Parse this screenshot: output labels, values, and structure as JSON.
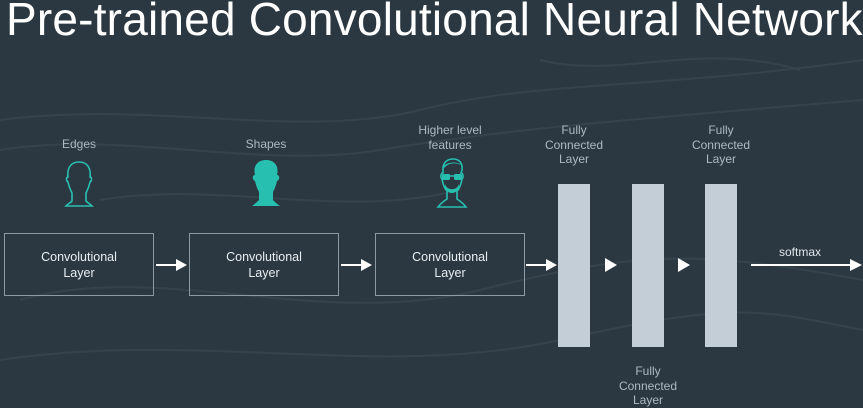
{
  "title": "Pre-trained Convolutional Neural Network",
  "feature_labels": {
    "edges": "Edges",
    "shapes": "Shapes",
    "higher_level": "Higher level\nfeatures"
  },
  "conv_layers": [
    {
      "label": "Convolutional\nLayer"
    },
    {
      "label": "Convolutional\nLayer"
    },
    {
      "label": "Convolutional\nLayer"
    }
  ],
  "fc_labels": {
    "fc1": "Fully\nConnected\nLayer",
    "fc2": "Fully\nConnected\nLayer",
    "fc3": "Fully\nConnected\nLayer"
  },
  "softmax_label": "softmax",
  "colors": {
    "background": "#2b3841",
    "accent": "#27c0b0",
    "fc_bar": "#c3ced6"
  },
  "icons": [
    "head-outline-icon",
    "head-silhouette-icon",
    "face-with-glasses-icon"
  ]
}
